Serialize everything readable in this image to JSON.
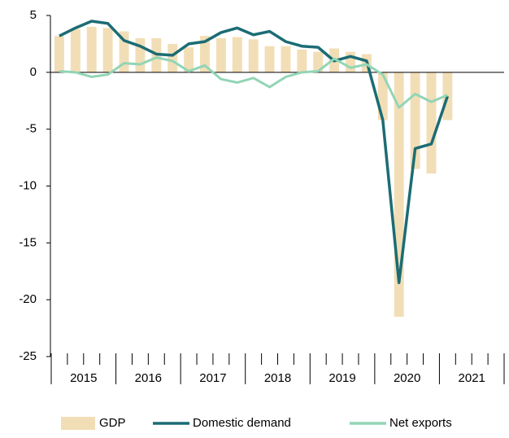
{
  "chart_data": {
    "type": "bar_line",
    "categories": [
      null,
      null,
      null,
      null,
      null,
      null,
      null,
      null,
      null,
      null,
      null,
      null,
      null,
      null,
      null,
      null,
      null,
      null,
      null,
      null,
      null,
      null,
      null,
      null,
      null,
      null,
      null,
      null
    ],
    "year_labels": [
      "2015",
      "2016",
      "2017",
      "2018",
      "2019",
      "2020",
      "2021"
    ],
    "series": [
      {
        "name": "GDP",
        "type": "bar",
        "color": "#f2deb6",
        "values": [
          3.2,
          3.8,
          4.0,
          3.9,
          3.6,
          3.0,
          3.0,
          2.5,
          2.2,
          3.2,
          3.0,
          3.1,
          2.9,
          2.3,
          2.3,
          2.0,
          1.8,
          2.1,
          1.8,
          1.6,
          -4.2,
          -21.5,
          -8.5,
          -8.9,
          -4.2,
          null,
          null,
          null
        ]
      },
      {
        "name": "Domestic demand",
        "type": "line",
        "color": "#1b6c74",
        "values": [
          3.2,
          3.9,
          4.5,
          4.3,
          2.8,
          2.3,
          1.6,
          1.5,
          2.5,
          2.7,
          3.5,
          3.9,
          3.3,
          3.6,
          2.7,
          2.3,
          2.2,
          1.0,
          1.4,
          1.0,
          -4.2,
          -18.5,
          -6.7,
          -6.3,
          -2.1,
          null,
          null,
          null
        ]
      },
      {
        "name": "Net exports",
        "type": "line",
        "color": "#92d5b6",
        "values": [
          0.1,
          0.0,
          -0.4,
          -0.2,
          0.8,
          0.7,
          1.3,
          1.0,
          0.1,
          0.6,
          -0.6,
          -0.9,
          -0.5,
          -1.3,
          -0.4,
          0.0,
          0.1,
          1.2,
          0.4,
          0.7,
          -0.2,
          -3.1,
          -1.9,
          -2.6,
          -2.0,
          null,
          null,
          null
        ]
      }
    ],
    "ylim": [
      -25,
      5
    ],
    "yticks": [
      -25,
      -20,
      -15,
      -10,
      -5,
      0,
      5
    ],
    "legend": "bottom"
  }
}
